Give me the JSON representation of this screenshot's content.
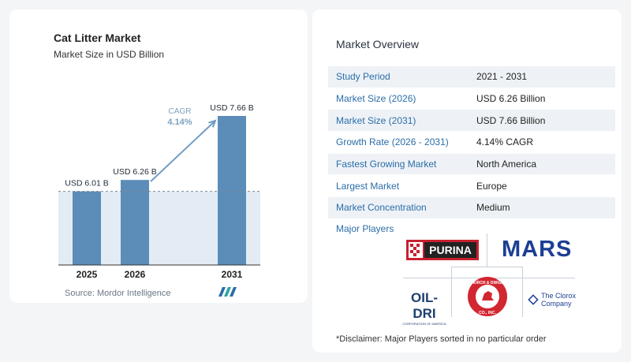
{
  "chart_data": {
    "type": "bar",
    "title": "Cat Litter Market",
    "subtitle": "Market Size in USD Billion",
    "categories": [
      "2025",
      "2026",
      "2031"
    ],
    "values": [
      6.01,
      6.26,
      7.66
    ],
    "value_labels": [
      "USD 6.01 B",
      "USD 6.26 B",
      "USD 7.66 B"
    ],
    "cagr_label": "CAGR",
    "cagr_value": "4.14%",
    "ylim": [
      4.4,
      7.66
    ],
    "grid": false,
    "colors": {
      "bar": "#5b8db8",
      "shade": "#e3ecf4",
      "dash": "#7a8a9a",
      "arrow": "#6f9cc3",
      "cagr_text": "#7fa2bf"
    }
  },
  "source": "Source:  Mordor Intelligence",
  "overview": {
    "title": "Market Overview",
    "rows": [
      {
        "label": "Study Period",
        "value": "2021 - 2031"
      },
      {
        "label": "Market Size (2026)",
        "value": "USD 6.26 Billion"
      },
      {
        "label": "Market Size (2031)",
        "value": "USD 7.66 Billion"
      },
      {
        "label": "Growth Rate (2026 - 2031)",
        "value": "4.14% CAGR"
      },
      {
        "label": "Fastest Growing Market",
        "value": "North America"
      },
      {
        "label": "Largest Market",
        "value": "Europe"
      },
      {
        "label": "Market Concentration",
        "value": "Medium"
      }
    ]
  },
  "players": {
    "title": "Major Players",
    "logos": {
      "purina": "PURINA",
      "mars": "MARS",
      "oildri": "OIL-DRI",
      "oildri_sub": "CORPORATION OF AMERICA",
      "church_top": "CHURCH & DWIGHT",
      "church_bottom": "CO., INC.",
      "clorox_line1": "The Clorox",
      "clorox_line2": "Company"
    }
  },
  "disclaimer": "*Disclaimer: Major Players sorted in no particular order"
}
